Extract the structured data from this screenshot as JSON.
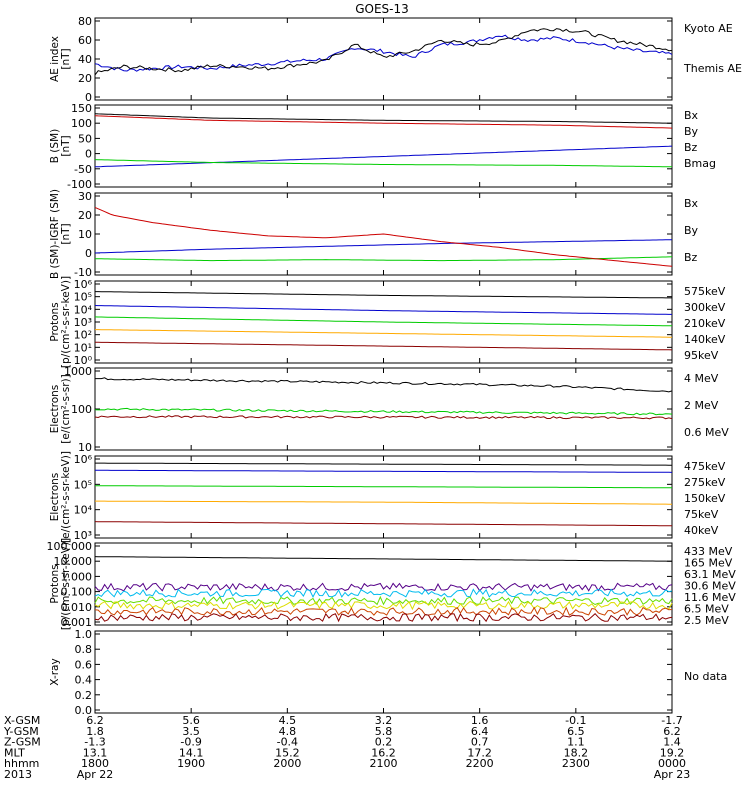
{
  "title": "GOES-13",
  "colors": {
    "black": "#000000",
    "blue": "#0000cc",
    "green": "#00cc00",
    "red": "#cc0000",
    "darkred": "#8b0000",
    "orange": "#ffaa00",
    "cyan": "#00bbee",
    "yellow": "#dddd00",
    "purple": "#550088",
    "lime": "#66dd00",
    "brown": "#aa4400"
  },
  "panels": [
    {
      "id": "ae",
      "ylabel": [
        "AE index",
        "[nT]"
      ],
      "ticks": [
        "80",
        "60",
        "40",
        "20",
        "0"
      ],
      "ylim": [
        0,
        80
      ],
      "scale": "linear",
      "legend": [
        {
          "label": "Kyoto AE",
          "color": "#0000cc"
        },
        {
          "label": "Themis AE",
          "color": "#000000"
        }
      ],
      "series": [
        {
          "name": "Kyoto AE",
          "color": "#0000cc",
          "x": [
            0,
            0.05,
            0.1,
            0.15,
            0.2,
            0.25,
            0.3,
            0.35,
            0.4,
            0.45,
            0.5,
            0.55,
            0.6,
            0.65,
            0.7,
            0.75,
            0.8,
            0.85,
            0.9,
            0.95,
            1
          ],
          "y": [
            35,
            28,
            30,
            32,
            30,
            33,
            35,
            38,
            40,
            52,
            48,
            42,
            55,
            58,
            65,
            60,
            62,
            58,
            52,
            48,
            45
          ]
        },
        {
          "name": "Themis AE",
          "color": "#000000",
          "x": [
            0,
            0.05,
            0.1,
            0.15,
            0.2,
            0.25,
            0.3,
            0.35,
            0.4,
            0.45,
            0.5,
            0.55,
            0.6,
            0.65,
            0.7,
            0.75,
            0.8,
            0.85,
            0.9,
            0.95,
            1
          ],
          "y": [
            25,
            32,
            30,
            28,
            33,
            32,
            30,
            34,
            38,
            55,
            42,
            48,
            60,
            55,
            58,
            70,
            72,
            68,
            60,
            55,
            50
          ]
        }
      ]
    },
    {
      "id": "bsm",
      "ylabel": [
        "B (SM)",
        "[nT]"
      ],
      "ticks": [
        "150",
        "100",
        "50",
        "0",
        "-50",
        "-100"
      ],
      "ylim": [
        -110,
        155
      ],
      "scale": "linear",
      "legend": [
        {
          "label": "Bx",
          "color": "#0000cc"
        },
        {
          "label": "By",
          "color": "#00cc00"
        },
        {
          "label": "Bz",
          "color": "#cc0000"
        },
        {
          "label": "Bmag",
          "color": "#000000"
        }
      ],
      "series": [
        {
          "name": "Bx",
          "color": "#0000cc",
          "x": [
            0,
            1
          ],
          "y": [
            -50,
            22
          ]
        },
        {
          "name": "By",
          "color": "#00cc00",
          "x": [
            0,
            0.2,
            0.5,
            0.8,
            1
          ],
          "y": [
            -25,
            -35,
            -42,
            -45,
            -50
          ]
        },
        {
          "name": "Bz",
          "color": "#cc0000",
          "x": [
            0,
            0.2,
            0.5,
            0.8,
            1
          ],
          "y": [
            128,
            112,
            102,
            95,
            85
          ]
        },
        {
          "name": "Bmag",
          "color": "#000000",
          "x": [
            0,
            0.2,
            0.5,
            0.8,
            1
          ],
          "y": [
            135,
            120,
            112,
            108,
            102
          ]
        }
      ]
    },
    {
      "id": "bigrf",
      "ylabel": [
        "B (SM)-IGRF (SM)",
        "[nT]"
      ],
      "ticks": [
        "30",
        "20",
        "10",
        "0",
        "-10"
      ],
      "ylim": [
        -10,
        30
      ],
      "scale": "linear",
      "legend": [
        {
          "label": "Bx",
          "color": "#0000cc"
        },
        {
          "label": "By",
          "color": "#00cc00"
        },
        {
          "label": "Bz",
          "color": "#cc0000"
        }
      ],
      "series": [
        {
          "name": "Bx",
          "color": "#0000cc",
          "x": [
            0,
            0.2,
            0.4,
            0.6,
            0.8,
            1
          ],
          "y": [
            0,
            2,
            3.5,
            5,
            6,
            7
          ]
        },
        {
          "name": "By",
          "color": "#00cc00",
          "x": [
            0,
            0.2,
            0.4,
            0.6,
            0.8,
            1
          ],
          "y": [
            -3,
            -4,
            -3.5,
            -4,
            -3.5,
            -2
          ]
        },
        {
          "name": "Bz",
          "color": "#cc0000",
          "x": [
            0,
            0.03,
            0.1,
            0.2,
            0.3,
            0.4,
            0.45,
            0.5,
            0.55,
            0.6,
            0.7,
            0.8,
            0.9,
            1
          ],
          "y": [
            24,
            20,
            16,
            12,
            9,
            8,
            9,
            10,
            8,
            6,
            3,
            -1,
            -4,
            -7
          ]
        }
      ]
    },
    {
      "id": "protons",
      "ylabel": [
        "Protons",
        "[p/(cm²-s-sr-keV)]"
      ],
      "ticks": [
        "10⁶",
        "10⁵",
        "10⁴",
        "10³",
        "10²",
        "10¹",
        "10⁰"
      ],
      "ylim": [
        0,
        6
      ],
      "scale": "log",
      "legend": [
        {
          "label": "575keV",
          "color": "#cc0000"
        },
        {
          "label": "300keV",
          "color": "#ffaa00"
        },
        {
          "label": "210keV",
          "color": "#00cc00"
        },
        {
          "label": "140keV",
          "color": "#0000cc"
        },
        {
          "label": "95keV",
          "color": "#000000"
        }
      ],
      "series": [
        {
          "name": "95keV",
          "color": "#000000",
          "x": [
            0,
            0.5,
            1
          ],
          "y": [
            5.4,
            5.1,
            4.9
          ]
        },
        {
          "name": "140keV",
          "color": "#0000cc",
          "x": [
            0,
            0.5,
            1
          ],
          "y": [
            4.3,
            3.9,
            3.6
          ]
        },
        {
          "name": "210keV",
          "color": "#00cc00",
          "x": [
            0,
            0.5,
            1
          ],
          "y": [
            3.4,
            3.0,
            2.7
          ]
        },
        {
          "name": "300keV",
          "color": "#ffaa00",
          "x": [
            0,
            0.5,
            1
          ],
          "y": [
            2.4,
            2.1,
            1.8
          ]
        },
        {
          "name": "575keV",
          "color": "#8b0000",
          "x": [
            0,
            0.5,
            1
          ],
          "y": [
            1.4,
            1.1,
            0.8
          ]
        }
      ]
    },
    {
      "id": "electrons_mev",
      "ylabel": [
        "Electrons",
        "[e/(cm²-s-sr)]"
      ],
      "ticks": [
        "1000",
        "100",
        "10"
      ],
      "ylim": [
        0,
        3
      ],
      "scale": "log",
      "legend": [
        {
          "label": "4 MeV",
          "color": "#cc0000"
        },
        {
          "label": "2 MeV",
          "color": "#00cc00"
        },
        {
          "label": "0.6 MeV",
          "color": "#000000"
        }
      ],
      "series": [
        {
          "name": "0.6 MeV",
          "color": "#000000",
          "x": [
            0,
            0.3,
            0.6,
            0.8,
            1
          ],
          "y": [
            2.7,
            2.6,
            2.5,
            2.4,
            2.2
          ]
        },
        {
          "name": "2 MeV",
          "color": "#00cc00",
          "x": [
            0,
            0.5,
            1
          ],
          "y": [
            1.5,
            1.4,
            1.3
          ]
        },
        {
          "name": "4 MeV",
          "color": "#8b0000",
          "x": [
            0,
            0.5,
            1
          ],
          "y": [
            1.2,
            1.18,
            1.15
          ]
        }
      ]
    },
    {
      "id": "electrons_kev",
      "ylabel": [
        "Electrons",
        "[e/(cm²-s-sr-keV)]"
      ],
      "ticks": [
        "10⁶",
        "10⁵",
        "10⁴",
        "10³"
      ],
      "ylim": [
        2.3,
        6
      ],
      "scale": "log",
      "legend": [
        {
          "label": "475keV",
          "color": "#cc0000"
        },
        {
          "label": "275keV",
          "color": "#ffaa00"
        },
        {
          "label": "150keV",
          "color": "#00cc00"
        },
        {
          "label": "75keV",
          "color": "#0000cc"
        },
        {
          "label": "40keV",
          "color": "#000000"
        }
      ],
      "series": [
        {
          "name": "40keV",
          "color": "#000000",
          "x": [
            0,
            0.5,
            1
          ],
          "y": [
            5.8,
            5.75,
            5.7
          ]
        },
        {
          "name": "75keV",
          "color": "#0000cc",
          "x": [
            0,
            0.5,
            1
          ],
          "y": [
            5.45,
            5.4,
            5.35
          ]
        },
        {
          "name": "150keV",
          "color": "#00cc00",
          "x": [
            0,
            0.5,
            1
          ],
          "y": [
            4.7,
            4.65,
            4.6
          ]
        },
        {
          "name": "275keV",
          "color": "#ffaa00",
          "x": [
            0,
            0.5,
            1
          ],
          "y": [
            3.95,
            3.9,
            3.8
          ]
        },
        {
          "name": "475keV",
          "color": "#8b0000",
          "x": [
            0,
            0.5,
            1
          ],
          "y": [
            2.95,
            2.85,
            2.75
          ]
        }
      ]
    },
    {
      "id": "protons_mev",
      "ylabel": [
        "Protons",
        "[p/(cm²-s-sr-keV)]"
      ],
      "ticks": [
        "100.000",
        "10.000",
        "1.000",
        "0.100",
        "0.010",
        "0.001"
      ],
      "ylim": [
        -3,
        2
      ],
      "scale": "log",
      "legend": [
        {
          "label": "433 MeV",
          "color": "#8b0000"
        },
        {
          "label": "165 MeV",
          "color": "#cc4400"
        },
        {
          "label": "63.1 MeV",
          "color": "#dddd00"
        },
        {
          "label": "30.6 MeV",
          "color": "#66dd00"
        },
        {
          "label": "11.6 MeV",
          "color": "#00bbee"
        },
        {
          "label": "6.5 MeV",
          "color": "#550088"
        },
        {
          "label": "2.5 MeV",
          "color": "#000000"
        }
      ],
      "series": [
        {
          "name": "2.5 MeV",
          "color": "#000000",
          "x": [
            0,
            0.5,
            1
          ],
          "y": [
            1.3,
            1.15,
            1.0
          ]
        },
        {
          "name": "6.5 MeV",
          "color": "#550088",
          "x": [
            0,
            1
          ],
          "y": [
            -0.7,
            -0.7
          ]
        },
        {
          "name": "11.6 MeV",
          "color": "#00bbee",
          "x": [
            0,
            1
          ],
          "y": [
            -1.1,
            -1.1
          ]
        },
        {
          "name": "30.6 MeV",
          "color": "#66dd00",
          "x": [
            0,
            1
          ],
          "y": [
            -1.6,
            -1.6
          ]
        },
        {
          "name": "63.1 MeV",
          "color": "#dddd00",
          "x": [
            0,
            1
          ],
          "y": [
            -1.9,
            -1.9
          ]
        },
        {
          "name": "165 MeV",
          "color": "#cc4400",
          "x": [
            0,
            1
          ],
          "y": [
            -2.3,
            -2.3
          ]
        },
        {
          "name": "433 MeV",
          "color": "#8b0000",
          "x": [
            0,
            1
          ],
          "y": [
            -2.7,
            -2.7
          ]
        }
      ]
    },
    {
      "id": "xray",
      "ylabel": [
        "X-ray",
        ""
      ],
      "ticks": [
        "1.0",
        "0.8",
        "0.6",
        "0.4",
        "0.2",
        "0.0"
      ],
      "ylim": [
        0,
        1
      ],
      "scale": "linear",
      "legend": [
        {
          "label": "No data",
          "color": "#000000"
        }
      ],
      "series": []
    }
  ],
  "footer": {
    "row_labels": [
      "X-GSM",
      "Y-GSM",
      "Z-GSM",
      "MLT",
      "hhmm",
      "2013"
    ],
    "columns": [
      [
        "6.2",
        "1.8",
        "-1.3",
        "13.1",
        "1800",
        "Apr 22"
      ],
      [
        "5.6",
        "3.5",
        "-0.9",
        "14.1",
        "1900",
        ""
      ],
      [
        "4.5",
        "4.8",
        "-0.4",
        "15.2",
        "2000",
        ""
      ],
      [
        "3.2",
        "5.8",
        "0.2",
        "16.2",
        "2100",
        ""
      ],
      [
        "1.6",
        "6.4",
        "0.7",
        "17.2",
        "2200",
        ""
      ],
      [
        "-0.1",
        "6.5",
        "1.1",
        "18.2",
        "2300",
        ""
      ],
      [
        "-1.7",
        "6.2",
        "1.4",
        "19.2",
        "0000",
        "Apr 23"
      ]
    ]
  }
}
